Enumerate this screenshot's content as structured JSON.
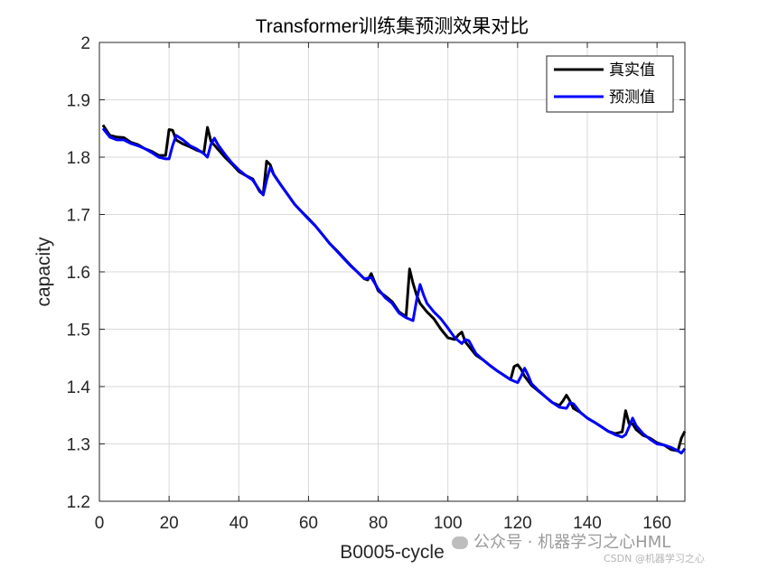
{
  "chart_data": {
    "type": "line",
    "title": "Transformer训练集预测效果对比",
    "xlabel": "B0005-cycle",
    "ylabel": "capacity",
    "xlim": [
      0,
      168
    ],
    "ylim": [
      1.2,
      2.0
    ],
    "xticks": [
      0,
      20,
      40,
      60,
      80,
      100,
      120,
      140,
      160
    ],
    "yticks": [
      1.2,
      1.3,
      1.4,
      1.5,
      1.6,
      1.7,
      1.8,
      1.9,
      2.0
    ],
    "ytick_labels": [
      "1.2",
      "1.3",
      "1.4",
      "1.5",
      "1.6",
      "1.7",
      "1.8",
      "1.9",
      "2"
    ],
    "grid": true,
    "legend_position": "top-right",
    "colors": {
      "actual": "#000000",
      "predicted": "#0000ff",
      "grid": "#d9d9d9"
    },
    "series": [
      {
        "name": "真实值",
        "x": [
          1,
          3,
          5,
          7,
          9,
          11,
          13,
          15,
          17,
          19,
          20,
          21,
          22,
          24,
          26,
          28,
          30,
          31,
          32,
          34,
          36,
          38,
          40,
          42,
          44,
          46,
          47,
          48,
          49,
          50,
          52,
          54,
          56,
          58,
          60,
          62,
          64,
          66,
          68,
          70,
          72,
          74,
          76,
          77,
          78,
          79,
          80,
          82,
          84,
          86,
          88,
          89,
          90,
          91,
          92,
          94,
          96,
          98,
          100,
          102,
          103,
          104,
          105,
          106,
          108,
          110,
          112,
          114,
          116,
          118,
          119,
          120,
          121,
          122,
          124,
          126,
          128,
          130,
          132,
          133,
          134,
          135,
          136,
          138,
          140,
          142,
          144,
          146,
          148,
          150,
          151,
          152,
          153,
          154,
          156,
          158,
          160,
          162,
          164,
          166,
          167,
          168
        ],
        "values": [
          1.856,
          1.838,
          1.835,
          1.834,
          1.826,
          1.822,
          1.815,
          1.81,
          1.803,
          1.803,
          1.848,
          1.847,
          1.83,
          1.823,
          1.818,
          1.812,
          1.808,
          1.852,
          1.828,
          1.814,
          1.8,
          1.788,
          1.775,
          1.768,
          1.762,
          1.74,
          1.735,
          1.793,
          1.787,
          1.77,
          1.752,
          1.735,
          1.718,
          1.705,
          1.693,
          1.68,
          1.665,
          1.65,
          1.638,
          1.625,
          1.612,
          1.6,
          1.588,
          1.586,
          1.597,
          1.582,
          1.567,
          1.558,
          1.548,
          1.53,
          1.522,
          1.605,
          1.58,
          1.56,
          1.545,
          1.53,
          1.518,
          1.5,
          1.485,
          1.482,
          1.49,
          1.495,
          1.478,
          1.47,
          1.455,
          1.447,
          1.437,
          1.428,
          1.42,
          1.412,
          1.435,
          1.438,
          1.43,
          1.418,
          1.402,
          1.392,
          1.382,
          1.372,
          1.367,
          1.375,
          1.385,
          1.375,
          1.362,
          1.355,
          1.345,
          1.338,
          1.33,
          1.322,
          1.318,
          1.321,
          1.358,
          1.335,
          1.335,
          1.325,
          1.315,
          1.31,
          1.302,
          1.298,
          1.29,
          1.288,
          1.31,
          1.322
        ]
      },
      {
        "name": "预测值",
        "x": [
          1,
          3,
          5,
          7,
          9,
          11,
          13,
          15,
          17,
          19,
          20,
          21,
          22,
          24,
          26,
          28,
          30,
          31,
          32,
          33,
          34,
          36,
          38,
          40,
          42,
          44,
          46,
          47,
          48,
          49,
          50,
          52,
          54,
          56,
          58,
          60,
          62,
          64,
          66,
          68,
          70,
          72,
          74,
          76,
          78,
          80,
          82,
          84,
          86,
          88,
          90,
          91,
          92,
          93,
          94,
          96,
          98,
          100,
          102,
          104,
          105,
          106,
          108,
          110,
          112,
          114,
          116,
          118,
          120,
          121,
          122,
          123,
          124,
          126,
          128,
          130,
          132,
          134,
          135,
          136,
          138,
          140,
          142,
          144,
          146,
          148,
          150,
          151,
          152,
          153,
          154,
          156,
          158,
          160,
          162,
          164,
          166,
          167,
          168
        ],
        "values": [
          1.85,
          1.835,
          1.83,
          1.83,
          1.824,
          1.82,
          1.815,
          1.808,
          1.8,
          1.797,
          1.797,
          1.82,
          1.838,
          1.83,
          1.82,
          1.814,
          1.806,
          1.8,
          1.822,
          1.833,
          1.822,
          1.805,
          1.79,
          1.778,
          1.768,
          1.76,
          1.742,
          1.734,
          1.76,
          1.782,
          1.77,
          1.752,
          1.735,
          1.718,
          1.705,
          1.692,
          1.68,
          1.665,
          1.65,
          1.637,
          1.624,
          1.611,
          1.6,
          1.588,
          1.59,
          1.57,
          1.555,
          1.545,
          1.528,
          1.52,
          1.515,
          1.55,
          1.578,
          1.56,
          1.545,
          1.53,
          1.518,
          1.502,
          1.485,
          1.475,
          1.482,
          1.48,
          1.458,
          1.447,
          1.437,
          1.428,
          1.42,
          1.412,
          1.407,
          1.418,
          1.432,
          1.42,
          1.405,
          1.393,
          1.382,
          1.372,
          1.364,
          1.362,
          1.372,
          1.37,
          1.355,
          1.345,
          1.338,
          1.33,
          1.322,
          1.316,
          1.312,
          1.316,
          1.33,
          1.345,
          1.332,
          1.318,
          1.308,
          1.3,
          1.298,
          1.294,
          1.288,
          1.284,
          1.292
        ]
      }
    ]
  },
  "watermark": {
    "main": "公众号 · 机器学习之心HML",
    "sub": "CSDN @机器学习之心",
    "icon": "wechat-icon"
  }
}
